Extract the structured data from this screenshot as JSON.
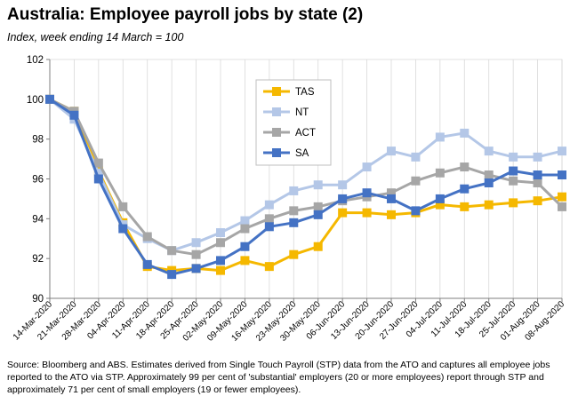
{
  "title": "Australia:  Employee payroll jobs by state (2)",
  "subtitle": "Index, week ending 14 March = 100",
  "source": "Source: Bloomberg and ABS.  Estimates derived from Single Touch Payroll (STP) data from the ATO and captures all employee jobs reported to the ATO via STP.  Approximately 99 per cent of 'substantial' employers (20 or more employees) report through STP and approximately 71 per cent of small employers (19 or fewer employees).",
  "chart_data": {
    "type": "line",
    "x": [
      "14-Mar-2020",
      "21-Mar-2020",
      "28-Mar-2020",
      "04-Apr-2020",
      "11-Apr-2020",
      "18-Apr-2020",
      "25-Apr-2020",
      "02-May-2020",
      "09-May-2020",
      "16-May-2020",
      "23-May-2020",
      "30-May-2020",
      "06-Jun-2020",
      "13-Jun-2020",
      "20-Jun-2020",
      "27-Jun-2020",
      "04-Jul-2020",
      "11-Jul-2020",
      "18-Jul-2020",
      "25-Jul-2020",
      "01-Aug-2020",
      "08-Aug-2020"
    ],
    "ylim": [
      90,
      102
    ],
    "yticks": [
      90,
      92,
      94,
      96,
      98,
      100,
      102
    ],
    "grid": "vertical",
    "legend": "top-center",
    "series": [
      {
        "name": "TAS",
        "color": "#f5b800",
        "values": [
          100.0,
          99.4,
          96.4,
          93.8,
          91.6,
          91.4,
          91.5,
          91.4,
          91.9,
          91.6,
          92.2,
          92.6,
          94.3,
          94.3,
          94.2,
          94.3,
          94.7,
          94.6,
          94.7,
          94.8,
          94.9,
          95.1
        ]
      },
      {
        "name": "NT",
        "color": "#b4c7e7",
        "values": [
          100.0,
          99.0,
          96.3,
          93.7,
          93.0,
          92.4,
          92.8,
          93.3,
          93.9,
          94.7,
          95.4,
          95.7,
          95.7,
          96.6,
          97.4,
          97.1,
          98.1,
          98.3,
          97.4,
          97.1,
          97.1,
          97.4
        ]
      },
      {
        "name": "ACT",
        "color": "#a6a6a6",
        "values": [
          100.0,
          99.4,
          96.8,
          94.6,
          93.1,
          92.4,
          92.2,
          92.8,
          93.5,
          94.0,
          94.4,
          94.6,
          94.9,
          95.1,
          95.3,
          95.9,
          96.3,
          96.6,
          96.2,
          95.9,
          95.8,
          94.6
        ]
      },
      {
        "name": "SA",
        "color": "#4472c4",
        "values": [
          100.0,
          99.2,
          96.0,
          93.5,
          91.7,
          91.2,
          91.5,
          91.9,
          92.6,
          93.6,
          93.8,
          94.2,
          95.0,
          95.3,
          95.0,
          94.4,
          95.0,
          95.5,
          95.8,
          96.4,
          96.2,
          96.2
        ]
      }
    ]
  }
}
